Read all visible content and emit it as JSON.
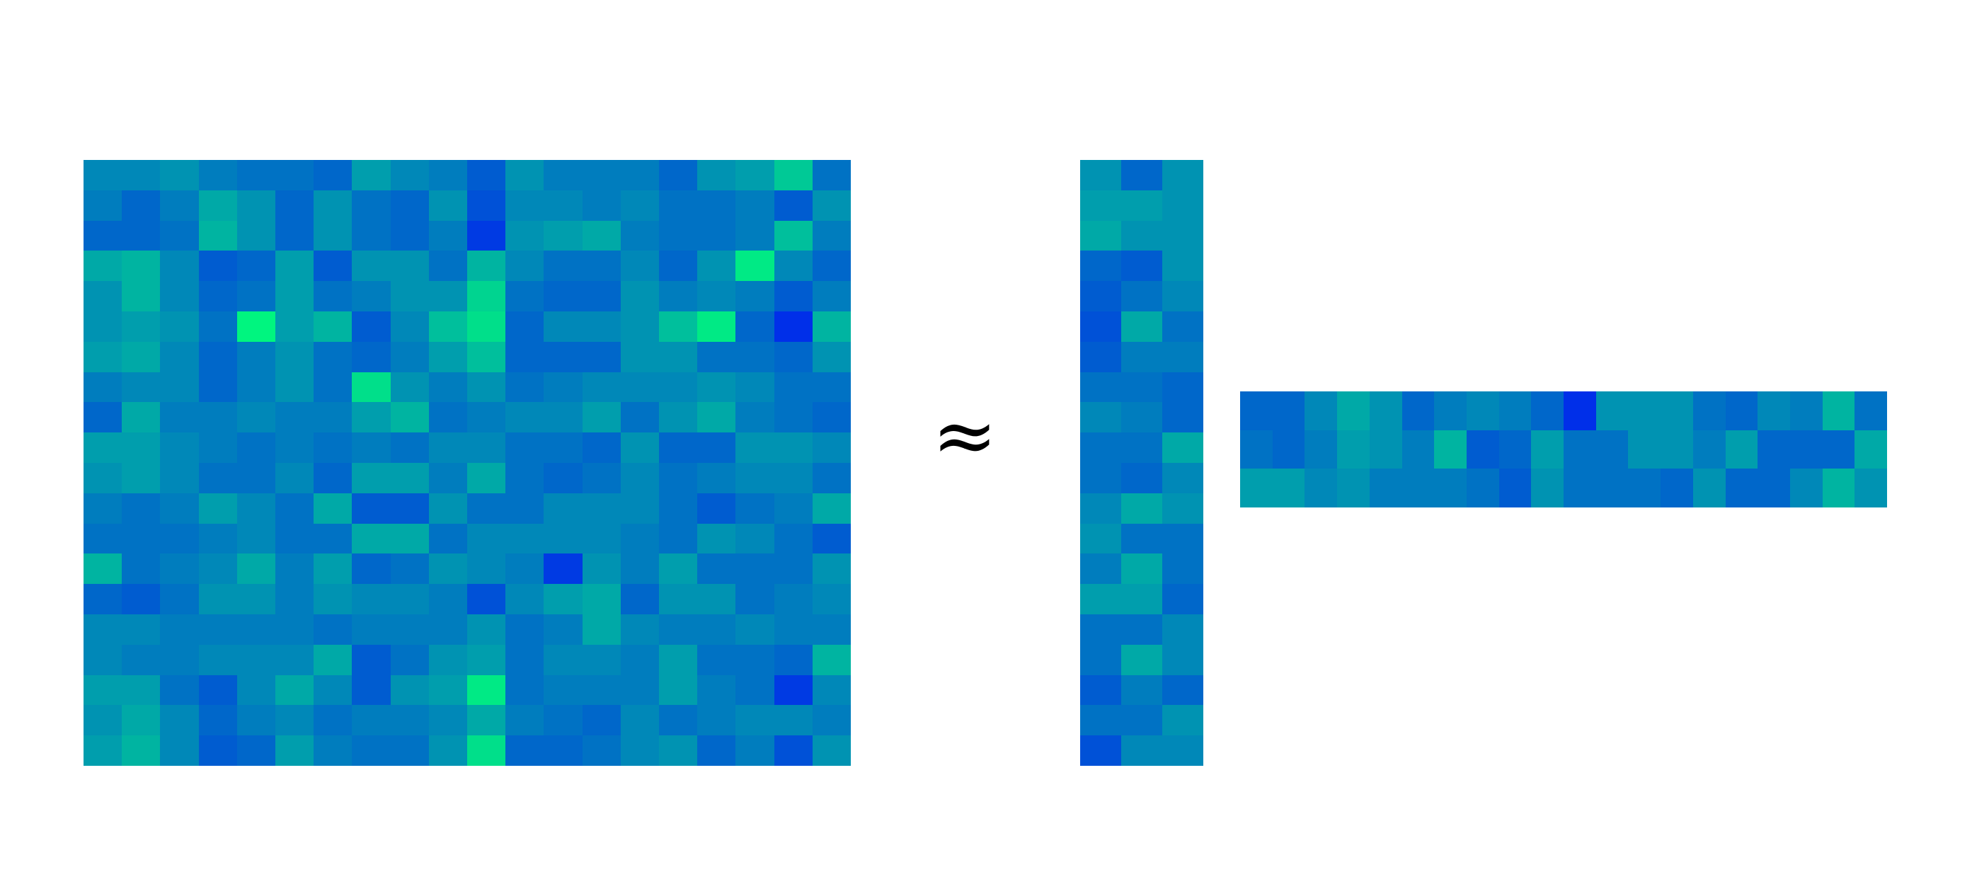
{
  "diagram": {
    "operator_symbol": "≈",
    "colormap": {
      "low": "#0019f5",
      "mid": "#0088b8",
      "high": "#00f57f"
    },
    "matrix_x": {
      "rows": 20,
      "cols": 20,
      "values": [
        [
          0.5,
          0.5,
          0.55,
          0.45,
          0.4,
          0.4,
          0.35,
          0.6,
          0.5,
          0.45,
          0.3,
          0.55,
          0.45,
          0.45,
          0.45,
          0.35,
          0.55,
          0.6,
          0.8,
          0.4
        ],
        [
          0.45,
          0.35,
          0.45,
          0.65,
          0.55,
          0.35,
          0.55,
          0.4,
          0.35,
          0.55,
          0.25,
          0.5,
          0.5,
          0.45,
          0.5,
          0.4,
          0.4,
          0.45,
          0.3,
          0.55
        ],
        [
          0.35,
          0.35,
          0.4,
          0.7,
          0.55,
          0.35,
          0.55,
          0.4,
          0.35,
          0.45,
          0.15,
          0.55,
          0.6,
          0.65,
          0.45,
          0.4,
          0.4,
          0.45,
          0.75,
          0.45
        ],
        [
          0.65,
          0.7,
          0.5,
          0.3,
          0.35,
          0.6,
          0.3,
          0.55,
          0.55,
          0.4,
          0.7,
          0.5,
          0.4,
          0.4,
          0.5,
          0.35,
          0.55,
          0.95,
          0.5,
          0.35
        ],
        [
          0.55,
          0.7,
          0.5,
          0.35,
          0.4,
          0.6,
          0.4,
          0.45,
          0.55,
          0.55,
          0.85,
          0.4,
          0.35,
          0.35,
          0.55,
          0.45,
          0.5,
          0.45,
          0.3,
          0.45
        ],
        [
          0.55,
          0.6,
          0.55,
          0.4,
          1.0,
          0.6,
          0.7,
          0.3,
          0.5,
          0.75,
          0.9,
          0.35,
          0.5,
          0.5,
          0.55,
          0.75,
          0.95,
          0.35,
          0.1,
          0.7
        ],
        [
          0.6,
          0.65,
          0.5,
          0.35,
          0.45,
          0.55,
          0.4,
          0.35,
          0.45,
          0.6,
          0.75,
          0.35,
          0.35,
          0.35,
          0.55,
          0.55,
          0.4,
          0.4,
          0.35,
          0.55
        ],
        [
          0.45,
          0.5,
          0.5,
          0.35,
          0.45,
          0.55,
          0.4,
          0.9,
          0.55,
          0.45,
          0.55,
          0.4,
          0.45,
          0.5,
          0.5,
          0.5,
          0.55,
          0.5,
          0.4,
          0.4
        ],
        [
          0.35,
          0.65,
          0.45,
          0.45,
          0.5,
          0.45,
          0.45,
          0.6,
          0.7,
          0.4,
          0.45,
          0.5,
          0.5,
          0.6,
          0.4,
          0.55,
          0.65,
          0.45,
          0.4,
          0.35
        ],
        [
          0.6,
          0.6,
          0.5,
          0.45,
          0.4,
          0.45,
          0.4,
          0.45,
          0.4,
          0.5,
          0.5,
          0.4,
          0.4,
          0.35,
          0.55,
          0.35,
          0.35,
          0.55,
          0.55,
          0.5
        ],
        [
          0.55,
          0.6,
          0.5,
          0.4,
          0.4,
          0.5,
          0.35,
          0.6,
          0.6,
          0.45,
          0.65,
          0.4,
          0.35,
          0.4,
          0.5,
          0.4,
          0.45,
          0.5,
          0.5,
          0.4
        ],
        [
          0.45,
          0.4,
          0.45,
          0.6,
          0.5,
          0.4,
          0.65,
          0.3,
          0.3,
          0.55,
          0.4,
          0.4,
          0.5,
          0.5,
          0.5,
          0.4,
          0.3,
          0.4,
          0.45,
          0.65
        ],
        [
          0.4,
          0.4,
          0.4,
          0.45,
          0.5,
          0.4,
          0.4,
          0.65,
          0.65,
          0.4,
          0.5,
          0.5,
          0.5,
          0.5,
          0.45,
          0.4,
          0.55,
          0.5,
          0.4,
          0.3
        ],
        [
          0.7,
          0.4,
          0.45,
          0.5,
          0.65,
          0.45,
          0.6,
          0.35,
          0.4,
          0.55,
          0.5,
          0.45,
          0.15,
          0.55,
          0.45,
          0.6,
          0.4,
          0.4,
          0.4,
          0.55
        ],
        [
          0.35,
          0.3,
          0.4,
          0.55,
          0.55,
          0.45,
          0.55,
          0.5,
          0.5,
          0.45,
          0.25,
          0.5,
          0.6,
          0.65,
          0.35,
          0.55,
          0.55,
          0.4,
          0.45,
          0.5
        ],
        [
          0.5,
          0.5,
          0.45,
          0.45,
          0.45,
          0.45,
          0.4,
          0.45,
          0.45,
          0.45,
          0.55,
          0.4,
          0.45,
          0.65,
          0.5,
          0.45,
          0.45,
          0.5,
          0.45,
          0.45
        ],
        [
          0.5,
          0.45,
          0.45,
          0.5,
          0.5,
          0.5,
          0.65,
          0.3,
          0.4,
          0.55,
          0.6,
          0.4,
          0.5,
          0.5,
          0.45,
          0.6,
          0.4,
          0.4,
          0.35,
          0.7
        ],
        [
          0.6,
          0.6,
          0.4,
          0.3,
          0.5,
          0.65,
          0.5,
          0.3,
          0.55,
          0.6,
          0.95,
          0.4,
          0.45,
          0.45,
          0.45,
          0.6,
          0.45,
          0.4,
          0.15,
          0.5
        ],
        [
          0.55,
          0.65,
          0.5,
          0.35,
          0.45,
          0.5,
          0.4,
          0.45,
          0.45,
          0.5,
          0.65,
          0.45,
          0.4,
          0.35,
          0.5,
          0.4,
          0.45,
          0.5,
          0.5,
          0.45
        ],
        [
          0.6,
          0.7,
          0.5,
          0.3,
          0.35,
          0.6,
          0.45,
          0.4,
          0.4,
          0.55,
          0.9,
          0.35,
          0.35,
          0.4,
          0.5,
          0.55,
          0.35,
          0.45,
          0.25,
          0.55
        ]
      ]
    },
    "matrix_w": {
      "rows": 20,
      "cols": 3,
      "values": [
        [
          0.55,
          0.35,
          0.55
        ],
        [
          0.6,
          0.6,
          0.55
        ],
        [
          0.65,
          0.55,
          0.55
        ],
        [
          0.35,
          0.3,
          0.55
        ],
        [
          0.3,
          0.4,
          0.5
        ],
        [
          0.25,
          0.65,
          0.4
        ],
        [
          0.3,
          0.45,
          0.45
        ],
        [
          0.4,
          0.4,
          0.35
        ],
        [
          0.5,
          0.45,
          0.35
        ],
        [
          0.4,
          0.4,
          0.65
        ],
        [
          0.4,
          0.35,
          0.5
        ],
        [
          0.5,
          0.65,
          0.55
        ],
        [
          0.55,
          0.4,
          0.4
        ],
        [
          0.45,
          0.65,
          0.4
        ],
        [
          0.6,
          0.6,
          0.35
        ],
        [
          0.4,
          0.4,
          0.5
        ],
        [
          0.4,
          0.65,
          0.5
        ],
        [
          0.3,
          0.45,
          0.35
        ],
        [
          0.4,
          0.4,
          0.55
        ],
        [
          0.25,
          0.5,
          0.5
        ]
      ]
    },
    "matrix_h": {
      "rows": 3,
      "cols": 20,
      "values": [
        [
          0.35,
          0.35,
          0.5,
          0.65,
          0.55,
          0.35,
          0.45,
          0.5,
          0.45,
          0.35,
          0.1,
          0.55,
          0.55,
          0.55,
          0.4,
          0.35,
          0.5,
          0.45,
          0.7,
          0.4
        ],
        [
          0.4,
          0.35,
          0.45,
          0.6,
          0.55,
          0.45,
          0.7,
          0.3,
          0.35,
          0.6,
          0.4,
          0.4,
          0.55,
          0.55,
          0.45,
          0.6,
          0.35,
          0.35,
          0.35,
          0.65
        ],
        [
          0.6,
          0.6,
          0.5,
          0.55,
          0.45,
          0.45,
          0.45,
          0.4,
          0.3,
          0.55,
          0.4,
          0.4,
          0.4,
          0.35,
          0.55,
          0.35,
          0.35,
          0.5,
          0.7,
          0.55
        ]
      ]
    }
  }
}
